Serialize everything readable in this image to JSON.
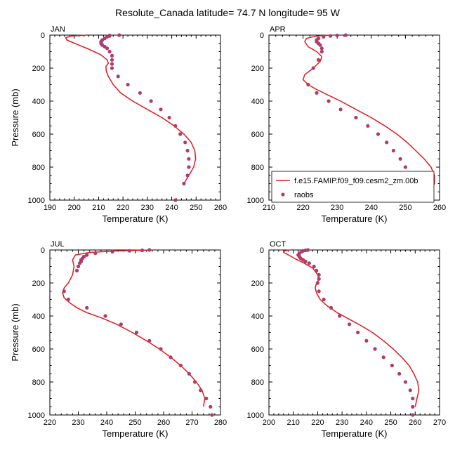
{
  "figure": {
    "title": "Resolute_Canada  latitude= 74.7 N longitude= 95 W",
    "line_color": "#e41a1c",
    "marker_color": "#b03a6b"
  },
  "legend": {
    "series_model": "f.e15.FAMIP.f09_f09.cesm2_zm.00b",
    "series_obs": "raobs"
  },
  "chart_data": [
    {
      "type": "line",
      "panel": "JAN",
      "xlabel": "Temperature (K)",
      "ylabel": "Pressure (mb)",
      "xlim": [
        190,
        260
      ],
      "ylim": [
        1000,
        0
      ],
      "xticks": [
        190,
        200,
        210,
        220,
        230,
        240,
        250,
        260
      ],
      "yticks": [
        0,
        200,
        400,
        600,
        800,
        1000
      ],
      "series": [
        {
          "name": "f.e15.FAMIP.f09_f09.cesm2_zm.00b",
          "kind": "line",
          "x": [
            205,
            199,
            196.5,
            197,
            201,
            206,
            211,
            213.5,
            214,
            213,
            213.2,
            214,
            216,
            219,
            224,
            230,
            236,
            241,
            245,
            248,
            249.5,
            249.8,
            249,
            247,
            245
          ],
          "y": [
            0,
            5,
            15,
            30,
            55,
            85,
            120,
            150,
            170,
            190,
            220,
            250,
            300,
            350,
            400,
            450,
            500,
            550,
            600,
            650,
            700,
            750,
            800,
            850,
            900
          ]
        },
        {
          "name": "raobs",
          "kind": "scatter",
          "x": [
            218.5,
            214.5,
            214.5,
            213.5,
            212.5,
            211.5,
            211,
            211,
            211.5,
            212.5,
            213.5,
            214.5,
            215.5,
            215.5,
            215.5,
            215.5,
            218,
            222,
            227,
            231.5,
            235.5,
            239,
            241.5,
            243.5,
            245.5,
            246.5,
            247,
            247,
            246.5,
            245,
            241.5
          ],
          "y": [
            0,
            2,
            5,
            10,
            20,
            30,
            40,
            50,
            60,
            70,
            80,
            100,
            125,
            150,
            175,
            200,
            250,
            300,
            350,
            400,
            450,
            500,
            550,
            600,
            650,
            700,
            750,
            800,
            850,
            900,
            1000
          ]
        }
      ]
    },
    {
      "type": "line",
      "panel": "APR",
      "xlabel": "Temperature (K)",
      "ylabel": "",
      "xlim": [
        210,
        260
      ],
      "ylim": [
        1000,
        0
      ],
      "xticks": [
        210,
        220,
        230,
        240,
        250,
        260
      ],
      "yticks": [
        0,
        200,
        400,
        600,
        800,
        1000
      ],
      "series": [
        {
          "name": "f.e15.FAMIP.f09_f09.cesm2_zm.00b",
          "kind": "line",
          "x": [
            228,
            224,
            221,
            220.5,
            221.5,
            224,
            225.5,
            225,
            223,
            220.5,
            220,
            221.5,
            224,
            227,
            231,
            235.5,
            240,
            244,
            247.5,
            250.5,
            253,
            255.5,
            257.5,
            258.5,
            258.5,
            257,
            254
          ],
          "y": [
            0,
            5,
            20,
            40,
            70,
            100,
            130,
            160,
            200,
            240,
            270,
            300,
            330,
            360,
            400,
            450,
            500,
            550,
            600,
            650,
            700,
            750,
            800,
            850,
            900,
            950,
            1000
          ]
        },
        {
          "name": "raobs",
          "kind": "scatter",
          "x": [
            232.5,
            230,
            228,
            226,
            224.5,
            224,
            224,
            224.5,
            225,
            225.5,
            225.5,
            224.5,
            223,
            221.5,
            224,
            227.5,
            231,
            235.5,
            239,
            242,
            244.5,
            246.5,
            248.5,
            250,
            251.5,
            252.5,
            251
          ],
          "y": [
            0,
            2,
            5,
            10,
            20,
            30,
            40,
            50,
            60,
            80,
            100,
            150,
            200,
            300,
            350,
            400,
            450,
            500,
            550,
            600,
            650,
            700,
            750,
            800,
            850,
            900,
            1000
          ]
        }
      ]
    },
    {
      "type": "line",
      "panel": "JUL",
      "xlabel": "Temperature (K)",
      "ylabel": "Pressure (mb)",
      "xlim": [
        220,
        280
      ],
      "ylim": [
        1000,
        0
      ],
      "xticks": [
        220,
        230,
        240,
        250,
        260,
        270,
        280
      ],
      "yticks": [
        0,
        200,
        400,
        600,
        800,
        1000
      ],
      "series": [
        {
          "name": "f.e15.FAMIP.f09_f09.cesm2_zm.00b",
          "kind": "line",
          "x": [
            256,
            244,
            234,
            229,
            228,
            228.5,
            228,
            226.5,
            225,
            224.5,
            225,
            227,
            229.5,
            233,
            238,
            243.5,
            249,
            254,
            258.5,
            262.5,
            266,
            269,
            271.5,
            273.5,
            274.5,
            274
          ],
          "y": [
            0,
            5,
            15,
            30,
            60,
            100,
            150,
            200,
            230,
            260,
            290,
            320,
            350,
            380,
            410,
            450,
            500,
            550,
            600,
            650,
            700,
            750,
            800,
            850,
            900,
            950
          ]
        },
        {
          "name": "raobs",
          "kind": "scatter",
          "x": [
            255,
            252.5,
            248,
            242,
            236,
            233,
            232,
            231.5,
            231,
            231,
            230.5,
            230,
            229.5,
            225,
            226.5,
            233,
            239.5,
            245,
            250.5,
            255,
            259,
            262.5,
            266,
            269,
            271,
            273,
            275,
            276.5,
            277
          ],
          "y": [
            0,
            2,
            5,
            10,
            20,
            30,
            40,
            50,
            60,
            70,
            80,
            100,
            125,
            250,
            300,
            350,
            400,
            450,
            500,
            550,
            600,
            650,
            700,
            750,
            800,
            850,
            900,
            950,
            1000
          ]
        }
      ]
    },
    {
      "type": "line",
      "panel": "OCT",
      "xlabel": "Temperature (K)",
      "ylabel": "",
      "xlim": [
        200,
        270
      ],
      "ylim": [
        1000,
        0
      ],
      "xticks": [
        200,
        210,
        220,
        230,
        240,
        250,
        260,
        270
      ],
      "yticks": [
        0,
        200,
        400,
        600,
        800,
        1000
      ],
      "series": [
        {
          "name": "f.e15.FAMIP.f09_f09.cesm2_zm.00b",
          "kind": "line",
          "x": [
            208.5,
            206.5,
            206,
            208,
            211,
            214.5,
            218,
            220,
            220.5,
            219.5,
            219,
            219.5,
            221,
            224,
            228,
            233,
            238,
            242.5,
            247,
            251,
            254.5,
            257.5,
            259.5,
            261,
            261.5,
            260
          ],
          "y": [
            0,
            5,
            15,
            30,
            55,
            80,
            110,
            150,
            180,
            200,
            230,
            260,
            300,
            340,
            380,
            420,
            460,
            500,
            550,
            600,
            650,
            700,
            750,
            800,
            850,
            950
          ]
        },
        {
          "name": "raobs",
          "kind": "scatter",
          "x": [
            216,
            215,
            214,
            213.5,
            212.5,
            212,
            212.5,
            213,
            214,
            215,
            216.5,
            218.5,
            219.5,
            220.5,
            220.5,
            220,
            220.5,
            222.5,
            225.5,
            229,
            233,
            236.5,
            240,
            243.5,
            247,
            250.5,
            253.5,
            256,
            258,
            259,
            259,
            259
          ],
          "y": [
            0,
            2,
            5,
            10,
            20,
            30,
            40,
            50,
            60,
            70,
            80,
            100,
            125,
            150,
            175,
            200,
            250,
            300,
            350,
            400,
            450,
            500,
            550,
            600,
            650,
            700,
            750,
            800,
            850,
            900,
            950,
            1000
          ]
        }
      ]
    }
  ]
}
